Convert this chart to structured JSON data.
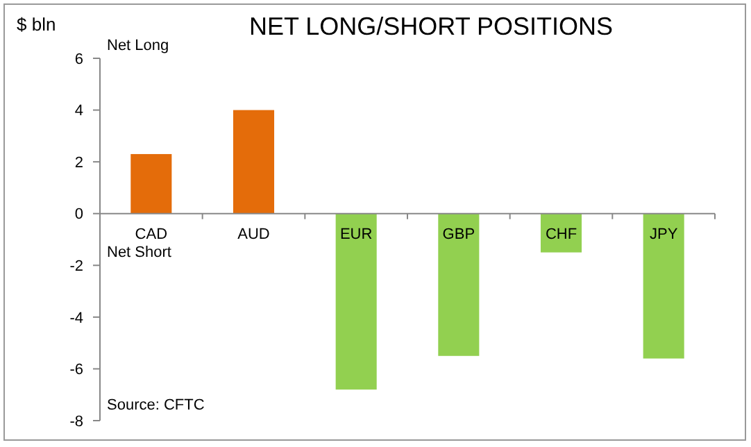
{
  "chart_data": {
    "type": "bar",
    "title": "NET LONG/SHORT POSITIONS",
    "ylabel": "$ bln",
    "categories": [
      "CAD",
      "AUD",
      "EUR",
      "GBP",
      "CHF",
      "JPY"
    ],
    "values": [
      2.3,
      4.0,
      -6.8,
      -5.5,
      -1.5,
      -5.6
    ],
    "colors": [
      "#e46c0a",
      "#e46c0a",
      "#92d050",
      "#92d050",
      "#92d050",
      "#92d050"
    ],
    "ylim": [
      -8,
      6
    ],
    "yticks": [
      -8,
      -6,
      -4,
      -2,
      0,
      2,
      4,
      6
    ],
    "grid": false,
    "annotations": [
      "Net Long",
      "Net Short",
      "Source: CFTC"
    ]
  }
}
